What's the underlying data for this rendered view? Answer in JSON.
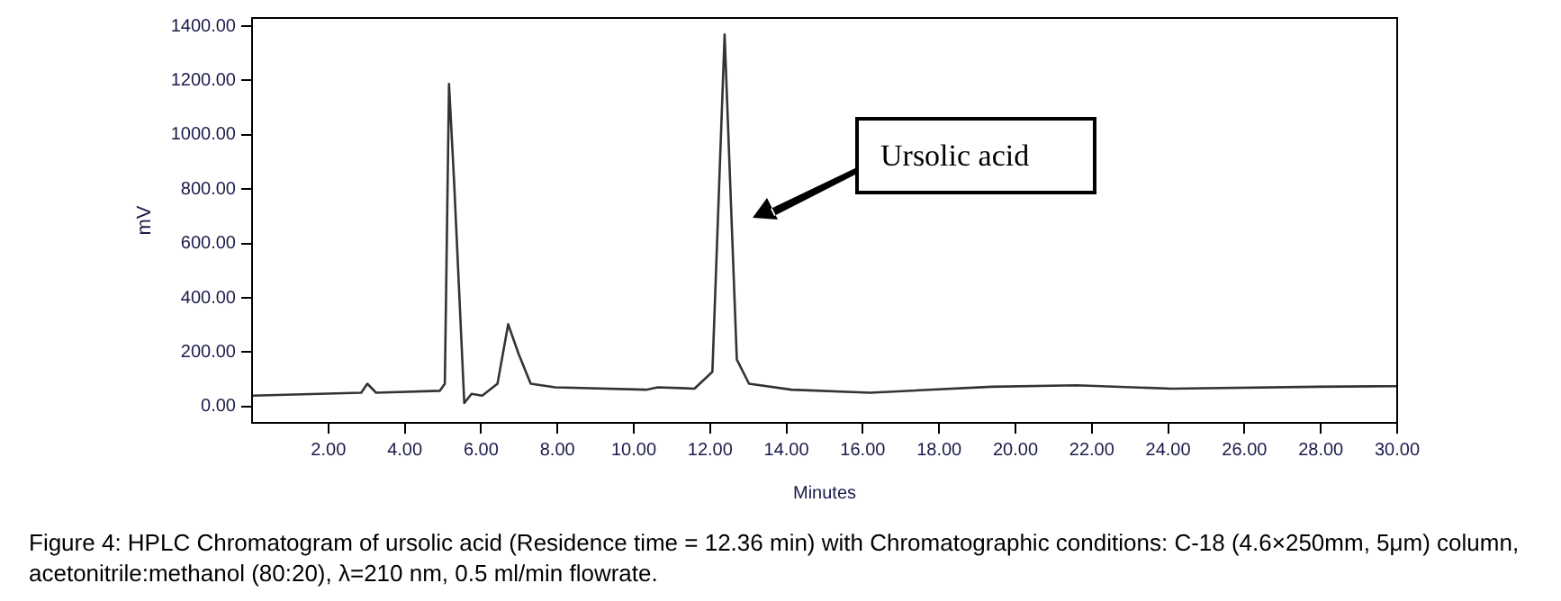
{
  "chart_data": {
    "type": "line",
    "xlabel": "Minutes",
    "ylabel": "mV",
    "x": [
      0,
      2.86,
      3.02,
      3.25,
      4.92,
      5.05,
      5.16,
      5.29,
      5.56,
      5.75,
      6.03,
      6.43,
      6.71,
      6.98,
      7.3,
      7.94,
      10.32,
      10.63,
      11.59,
      12.06,
      12.38,
      12.7,
      13.02,
      14.13,
      16.19,
      19.37,
      21.6,
      24.1,
      27.9,
      30
    ],
    "series": [
      {
        "color": "#333333",
        "values": [
          40,
          51,
          84,
          51,
          58,
          84,
          1187,
          837,
          13,
          47,
          40,
          84,
          303,
          195,
          84,
          71,
          62,
          71,
          66,
          128,
          1369,
          173,
          84,
          62,
          51,
          73,
          78,
          66,
          73,
          75
        ]
      }
    ],
    "xlim": [
      0,
      30
    ],
    "ylim": [
      -60,
      1430
    ],
    "xticks": [
      {
        "value": 2,
        "label": "2.00"
      },
      {
        "value": 4,
        "label": "4.00"
      },
      {
        "value": 6,
        "label": "6.00"
      },
      {
        "value": 8,
        "label": "8.00"
      },
      {
        "value": 10,
        "label": "10.00"
      },
      {
        "value": 12,
        "label": "12.00"
      },
      {
        "value": 14,
        "label": "14.00"
      },
      {
        "value": 16,
        "label": "16.00"
      },
      {
        "value": 18,
        "label": "18.00"
      },
      {
        "value": 20,
        "label": "20.00"
      },
      {
        "value": 22,
        "label": "22.00"
      },
      {
        "value": 24,
        "label": "24.00"
      },
      {
        "value": 26,
        "label": "26.00"
      },
      {
        "value": 28,
        "label": "28.00"
      },
      {
        "value": 30,
        "label": "30.00"
      }
    ],
    "yticks": [
      {
        "value": 0,
        "label": "0.00"
      },
      {
        "value": 200,
        "label": "200.00"
      },
      {
        "value": 400,
        "label": "400.00"
      },
      {
        "value": 600,
        "label": "600.00"
      },
      {
        "value": 800,
        "label": "800.00"
      },
      {
        "value": 1000,
        "label": "1000.00"
      },
      {
        "value": 1200,
        "label": "1200.00"
      },
      {
        "value": 1400,
        "label": "1400.00"
      }
    ],
    "grid": false,
    "legend": false,
    "marker": "none",
    "line_style": "solid",
    "annotations": [
      "Ursolic acid",
      "Figure 4: HPLC Chromatogram of ursolic acid (Residence time = 12.36 min) with Chromatographic conditions: C-18 (4.6×250mm, 5μm) column, acetonitrile:methanol (80:20), λ=210 nm, 0.5 ml/min flowrate."
    ]
  }
}
